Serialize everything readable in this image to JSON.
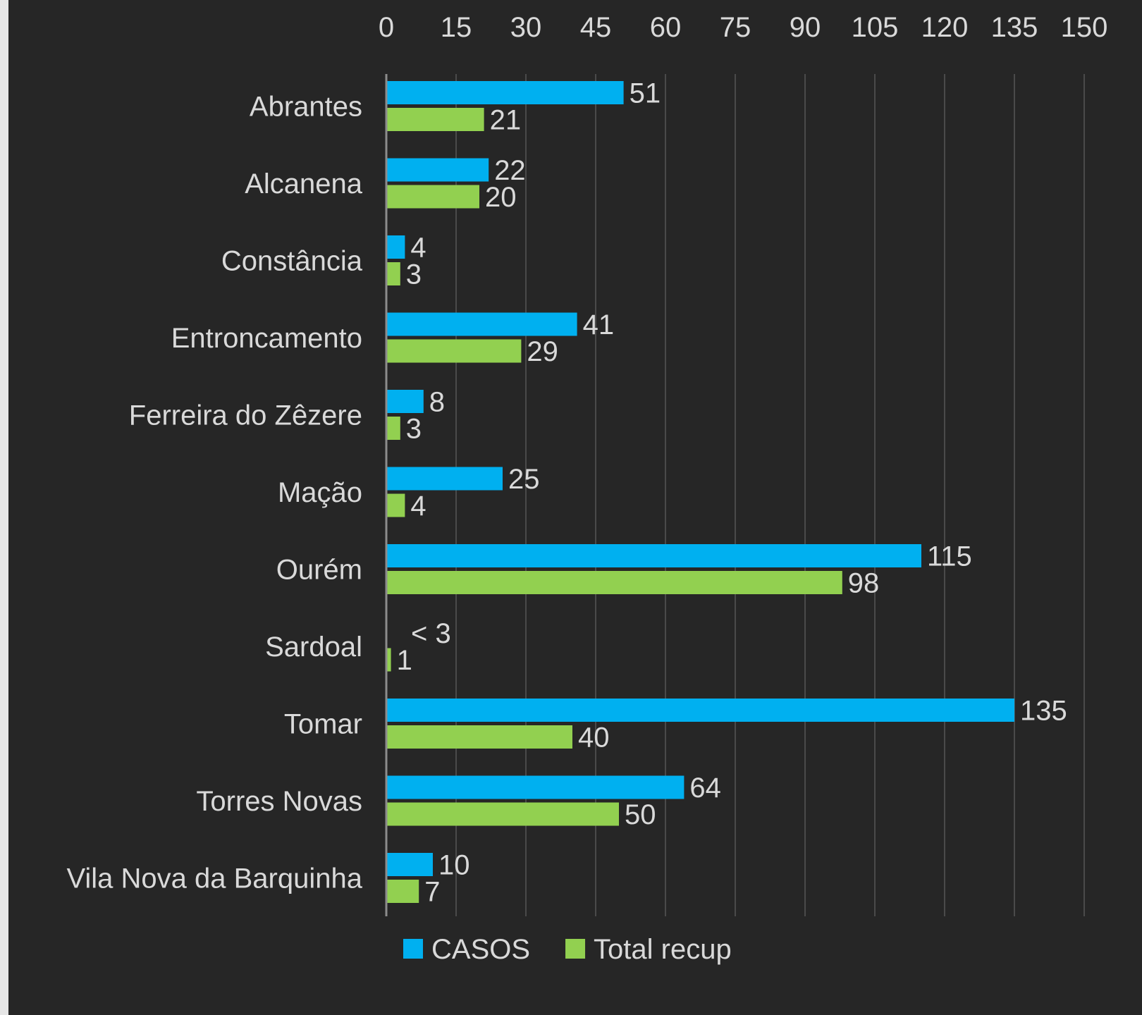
{
  "chart_data": {
    "type": "bar",
    "orientation": "horizontal",
    "categories": [
      "Abrantes",
      "Alcanena",
      "Constância",
      "Entroncamento",
      "Ferreira do Zêzere",
      "Mação",
      "Ourém",
      "Sardoal",
      "Tomar",
      "Torres Novas",
      "Vila Nova da Barquinha"
    ],
    "series": [
      {
        "name": "CASOS",
        "color": "#00b0f0",
        "values": [
          51,
          22,
          4,
          41,
          8,
          25,
          115,
          null,
          135,
          64,
          10
        ],
        "labels": [
          "51",
          "22",
          "4",
          "41",
          "8",
          "25",
          "115",
          "< 3",
          "135",
          "64",
          "10"
        ]
      },
      {
        "name": "Total recup",
        "color": "#92d050",
        "values": [
          21,
          20,
          3,
          29,
          3,
          4,
          98,
          1,
          40,
          50,
          7
        ],
        "labels": [
          "21",
          "20",
          "3",
          "29",
          "3",
          "4",
          "98",
          "1",
          "40",
          "50",
          "7"
        ]
      }
    ],
    "xlim": [
      0,
      150
    ],
    "xticks": [
      0,
      15,
      30,
      45,
      60,
      75,
      90,
      105,
      120,
      135,
      150
    ],
    "xaxis_position": "top",
    "grid": true,
    "legend_position": "bottom",
    "background": "#262626"
  }
}
